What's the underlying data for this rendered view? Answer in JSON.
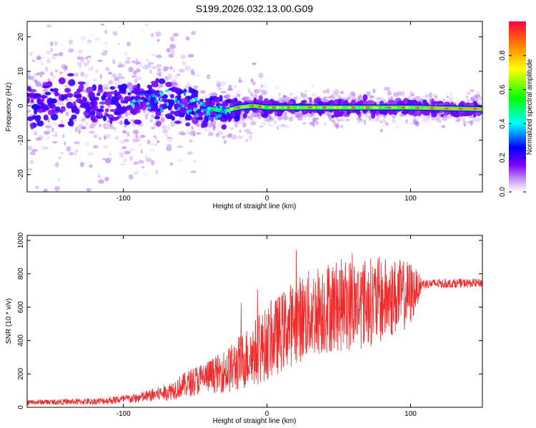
{
  "title": "S199.2026.032.13.00.G09",
  "chart_data": [
    {
      "type": "heatmap",
      "xlabel": "Height of straight line (km)",
      "ylabel": "Frequency (Hz)",
      "xlim": [
        -167,
        150
      ],
      "ylim": [
        -25,
        24.5
      ],
      "xticks": [
        -100,
        0,
        100
      ],
      "yticks": [
        20,
        10,
        0,
        -10,
        -20
      ],
      "grid": false,
      "colorbar": {
        "label": "Normalized spectral amplitude",
        "range": [
          0,
          1
        ],
        "ticks": [
          0.0,
          0.2,
          0.4,
          0.6,
          0.8
        ],
        "colors": [
          "#ffffff",
          "#c79bf2",
          "#7a00ff",
          "#0000ff",
          "#00ffff",
          "#00ff00",
          "#ffff00",
          "#ff8000",
          "#ff0040"
        ]
      },
      "ridge": {
        "description_points": [
          {
            "x": -60,
            "y": 1.0
          },
          {
            "x": -45,
            "y": -0.5
          },
          {
            "x": -30,
            "y": -1.5
          },
          {
            "x": -20,
            "y": -0.5
          },
          {
            "x": -10,
            "y": 0.0
          },
          {
            "x": 0,
            "y": -0.5
          },
          {
            "x": 10,
            "y": -0.5
          },
          {
            "x": 50,
            "y": -0.5
          },
          {
            "x": 100,
            "y": -0.5
          },
          {
            "x": 150,
            "y": -1.0
          }
        ]
      }
    },
    {
      "type": "line",
      "xlabel": "Height of straight line (km)",
      "ylabel": "SNR (10 * v/v)",
      "xlim": [
        -167,
        150
      ],
      "ylim": [
        0,
        1030
      ],
      "xticks": [
        -100,
        0,
        100
      ],
      "yticks": [
        0,
        200,
        400,
        600,
        800,
        1000
      ],
      "color": "#ee2a2a",
      "grid": false,
      "envelope": [
        {
          "x": -167,
          "mean": 30,
          "spread": 15
        },
        {
          "x": -120,
          "mean": 35,
          "spread": 20
        },
        {
          "x": -90,
          "mean": 55,
          "spread": 30
        },
        {
          "x": -70,
          "mean": 90,
          "spread": 50
        },
        {
          "x": -50,
          "mean": 160,
          "spread": 90
        },
        {
          "x": -35,
          "mean": 200,
          "spread": 110
        },
        {
          "x": -25,
          "mean": 230,
          "spread": 150
        },
        {
          "x": -10,
          "mean": 320,
          "spread": 200
        },
        {
          "x": 0,
          "mean": 380,
          "spread": 220
        },
        {
          "x": 20,
          "mean": 520,
          "spread": 260
        },
        {
          "x": 40,
          "mean": 600,
          "spread": 280
        },
        {
          "x": 60,
          "mean": 620,
          "spread": 280
        },
        {
          "x": 80,
          "mean": 640,
          "spread": 260
        },
        {
          "x": 100,
          "mean": 680,
          "spread": 200
        },
        {
          "x": 108,
          "mean": 740,
          "spread": 30
        },
        {
          "x": 150,
          "mean": 745,
          "spread": 25
        }
      ]
    }
  ]
}
